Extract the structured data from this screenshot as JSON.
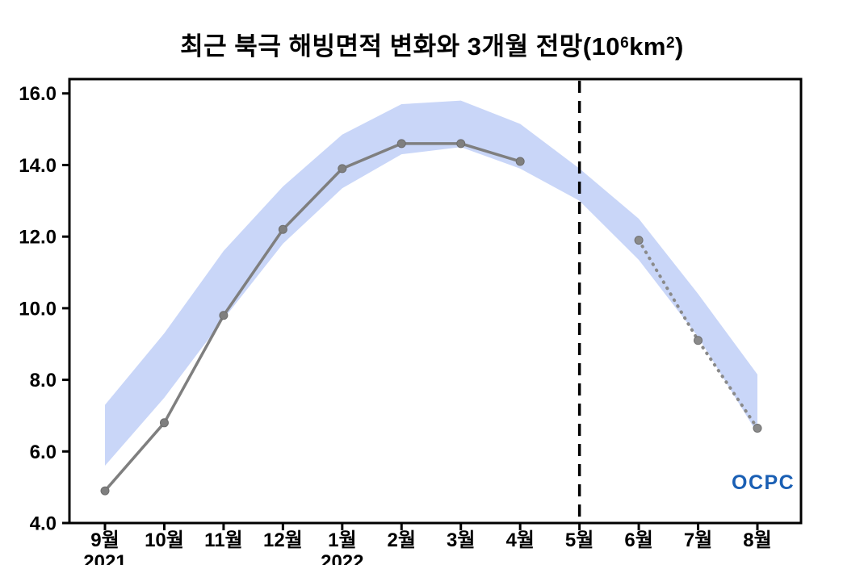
{
  "title": {
    "prefix": "최근 북극 해빙면적 변화와 3개월 전망(10",
    "sup1": "6",
    "mid": "km",
    "sup2": "2",
    "suffix": ")"
  },
  "logo": {
    "text": "OCPC",
    "color": "#1a5fb4"
  },
  "chart_data": {
    "type": "line",
    "title": "최근 북극 해빙면적 변화와 3개월 전망(10^6 km^2)",
    "categories": [
      "9월",
      "10월",
      "11월",
      "12월",
      "1월",
      "2월",
      "3월",
      "4월",
      "5월",
      "6월",
      "7월",
      "8월"
    ],
    "x_year_labels": [
      {
        "index": 0,
        "label": "2021"
      },
      {
        "index": 4,
        "label": "2022"
      }
    ],
    "ylim": [
      4.0,
      16.4
    ],
    "yticks": [
      4.0,
      6.0,
      8.0,
      10.0,
      12.0,
      14.0,
      16.0
    ],
    "grid": false,
    "legend": false,
    "series": [
      {
        "name": "observed",
        "style": "solid",
        "color": "#7f7f7f",
        "values": [
          4.9,
          6.8,
          9.8,
          12.2,
          13.9,
          14.6,
          14.6,
          14.1,
          null,
          null,
          null,
          null
        ]
      },
      {
        "name": "forecast",
        "style": "dotted",
        "color": "#8a8a8a",
        "values": [
          null,
          null,
          null,
          null,
          null,
          null,
          null,
          null,
          null,
          11.9,
          9.1,
          6.65
        ]
      }
    ],
    "band": {
      "name": "climatology-range",
      "color": "#c9d6f8",
      "upper": [
        7.3,
        9.3,
        11.6,
        13.4,
        14.85,
        15.7,
        15.8,
        15.15,
        13.9,
        12.5,
        10.4,
        8.15
      ],
      "lower": [
        5.6,
        7.5,
        9.7,
        11.8,
        13.35,
        14.3,
        14.5,
        13.9,
        13.0,
        11.35,
        9.2,
        6.5
      ]
    },
    "forecast_divider": {
      "category": "5월",
      "style": "dashed",
      "color": "#000000"
    }
  }
}
